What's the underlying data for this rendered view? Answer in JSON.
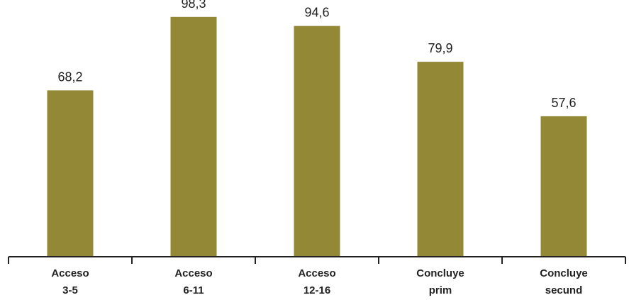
{
  "chart_data": {
    "type": "bar",
    "categories": [
      [
        "Acceso",
        "3-5"
      ],
      [
        "Acceso",
        "6-11"
      ],
      [
        "Acceso",
        "12-16"
      ],
      [
        "Concluye",
        "prim"
      ],
      [
        "Concluye",
        "secund"
      ]
    ],
    "values": [
      68.2,
      98.3,
      94.6,
      79.9,
      57.6
    ],
    "value_labels": [
      "68,2",
      "98,3",
      "94,6",
      "79,9",
      "57,6"
    ],
    "bar_color": "#938836",
    "axis_color": "#222222",
    "ylim": [
      0,
      100
    ],
    "grid": false,
    "legend": "none"
  }
}
